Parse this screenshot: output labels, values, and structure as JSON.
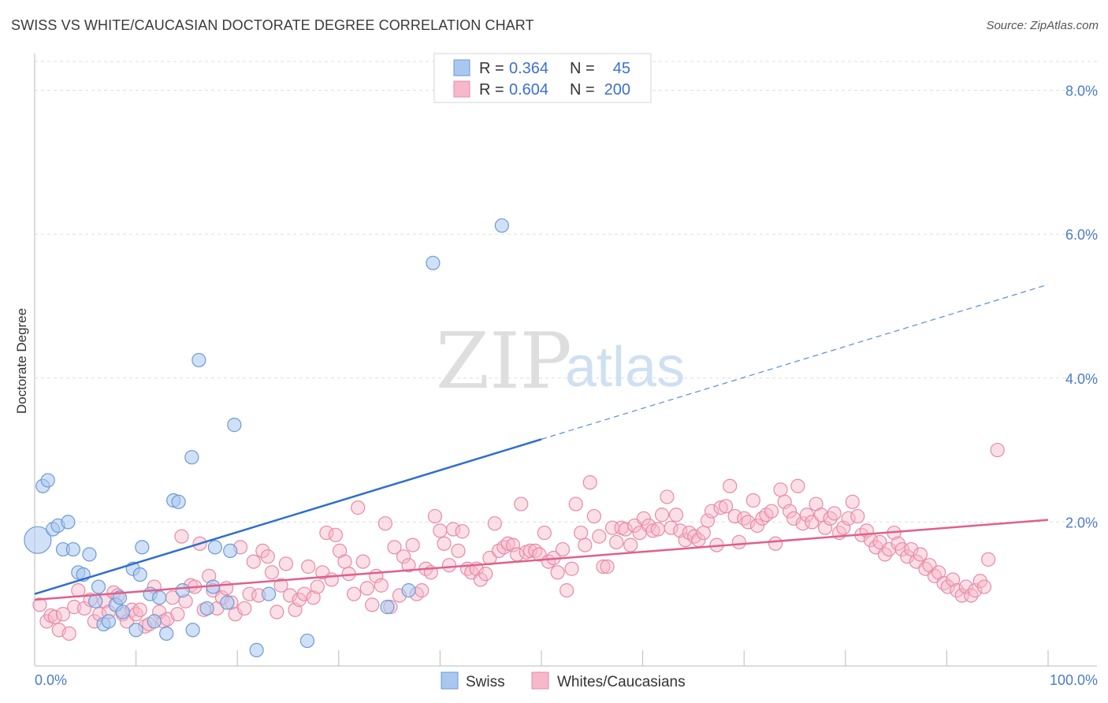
{
  "title": "SWISS VS WHITE/CAUCASIAN DOCTORATE DEGREE CORRELATION CHART",
  "source": "Source: ZipAtlas.com",
  "watermark": {
    "part1": "ZIP",
    "part2": "atlas"
  },
  "colors": {
    "swiss_fill": "#a9c8f0",
    "swiss_stroke": "#6c9ad6",
    "swiss_line": "#2f6fcc",
    "white_fill": "#f6b8ca",
    "white_stroke": "#e88aa6",
    "white_line": "#e0608a",
    "tick_label": "#4a7cc9"
  },
  "legend": {
    "rows": [
      {
        "r_label": "R =",
        "r_value": "0.364",
        "n_label": "N =",
        "n_value": "45"
      },
      {
        "r_label": "R =",
        "r_value": "0.604",
        "n_label": "N =",
        "n_value": "200"
      }
    ]
  },
  "bottom_legend": [
    "Swiss",
    "Whites/Caucasians"
  ],
  "chart_data": {
    "type": "scatter",
    "xlabel": "",
    "ylabel": "Doctorate Degree",
    "xlim": [
      0,
      100
    ],
    "ylim": [
      0,
      8.4
    ],
    "x_tick_labels": [
      "0.0%",
      "100.0%"
    ],
    "y_ticks": [
      2,
      4,
      6,
      8
    ],
    "y_tick_labels": [
      "2.0%",
      "4.0%",
      "6.0%",
      "8.0%"
    ],
    "grid": true,
    "series": [
      {
        "name": "Swiss",
        "R": 0.364,
        "N": 45,
        "trend": {
          "x0": 0,
          "y0": 1.0,
          "x1": 50,
          "y1": 3.15,
          "dashed_to": {
            "x": 100,
            "y": 5.3
          }
        },
        "points": [
          {
            "x": 0.3,
            "y": 1.75,
            "big": true
          },
          {
            "x": 0.8,
            "y": 2.5
          },
          {
            "x": 1.3,
            "y": 2.58
          },
          {
            "x": 1.8,
            "y": 1.9
          },
          {
            "x": 2.3,
            "y": 1.95
          },
          {
            "x": 2.8,
            "y": 1.62
          },
          {
            "x": 3.3,
            "y": 2.0
          },
          {
            "x": 3.8,
            "y": 1.62
          },
          {
            "x": 4.3,
            "y": 1.3
          },
          {
            "x": 4.8,
            "y": 1.27
          },
          {
            "x": 5.4,
            "y": 1.55
          },
          {
            "x": 6.0,
            "y": 0.9
          },
          {
            "x": 6.3,
            "y": 1.1
          },
          {
            "x": 6.8,
            "y": 0.58
          },
          {
            "x": 7.3,
            "y": 0.62
          },
          {
            "x": 8.0,
            "y": 0.85
          },
          {
            "x": 8.4,
            "y": 0.95
          },
          {
            "x": 8.7,
            "y": 0.75
          },
          {
            "x": 9.7,
            "y": 1.35
          },
          {
            "x": 10.0,
            "y": 0.5
          },
          {
            "x": 10.4,
            "y": 1.27
          },
          {
            "x": 10.6,
            "y": 1.65
          },
          {
            "x": 11.4,
            "y": 1.0
          },
          {
            "x": 11.8,
            "y": 0.62
          },
          {
            "x": 12.3,
            "y": 0.95
          },
          {
            "x": 13.0,
            "y": 0.45
          },
          {
            "x": 13.7,
            "y": 2.3
          },
          {
            "x": 14.2,
            "y": 2.28
          },
          {
            "x": 14.6,
            "y": 1.05
          },
          {
            "x": 15.5,
            "y": 2.9
          },
          {
            "x": 15.6,
            "y": 0.5
          },
          {
            "x": 16.2,
            "y": 4.25
          },
          {
            "x": 17.0,
            "y": 0.8
          },
          {
            "x": 17.6,
            "y": 1.1
          },
          {
            "x": 17.8,
            "y": 1.65
          },
          {
            "x": 19.3,
            "y": 1.6
          },
          {
            "x": 19.7,
            "y": 3.35
          },
          {
            "x": 21.9,
            "y": 0.22
          },
          {
            "x": 23.1,
            "y": 1.0
          },
          {
            "x": 26.9,
            "y": 0.35
          },
          {
            "x": 34.8,
            "y": 0.82
          },
          {
            "x": 36.9,
            "y": 1.05
          },
          {
            "x": 39.3,
            "y": 5.6
          },
          {
            "x": 46.1,
            "y": 6.12
          },
          {
            "x": 19.0,
            "y": 0.88
          }
        ]
      },
      {
        "name": "Whites/Caucasians",
        "R": 0.604,
        "N": 200,
        "trend": {
          "x0": 0,
          "y0": 0.92,
          "x1": 100,
          "y1": 2.03
        },
        "points": [
          {
            "x": 0.5,
            "y": 0.85
          },
          {
            "x": 1.2,
            "y": 0.62
          },
          {
            "x": 1.6,
            "y": 0.7
          },
          {
            "x": 2.0,
            "y": 0.68
          },
          {
            "x": 2.4,
            "y": 0.5
          },
          {
            "x": 2.8,
            "y": 0.72
          },
          {
            "x": 3.4,
            "y": 0.45
          },
          {
            "x": 3.9,
            "y": 0.82
          },
          {
            "x": 4.3,
            "y": 1.05
          },
          {
            "x": 4.9,
            "y": 0.8
          },
          {
            "x": 5.5,
            "y": 0.92
          },
          {
            "x": 5.9,
            "y": 0.62
          },
          {
            "x": 6.4,
            "y": 0.72
          },
          {
            "x": 6.9,
            "y": 0.9
          },
          {
            "x": 7.3,
            "y": 0.75
          },
          {
            "x": 7.8,
            "y": 1.02
          },
          {
            "x": 8.2,
            "y": 0.98
          },
          {
            "x": 8.7,
            "y": 0.72
          },
          {
            "x": 9.1,
            "y": 0.62
          },
          {
            "x": 9.6,
            "y": 0.78
          },
          {
            "x": 10.0,
            "y": 0.72
          },
          {
            "x": 10.4,
            "y": 0.78
          },
          {
            "x": 10.9,
            "y": 0.55
          },
          {
            "x": 11.3,
            "y": 0.58
          },
          {
            "x": 11.8,
            "y": 1.1
          },
          {
            "x": 12.3,
            "y": 0.75
          },
          {
            "x": 12.7,
            "y": 0.62
          },
          {
            "x": 13.1,
            "y": 0.65
          },
          {
            "x": 13.6,
            "y": 0.95
          },
          {
            "x": 14.1,
            "y": 0.72
          },
          {
            "x": 14.5,
            "y": 1.8
          },
          {
            "x": 14.9,
            "y": 0.9
          },
          {
            "x": 15.4,
            "y": 1.12
          },
          {
            "x": 15.8,
            "y": 1.1
          },
          {
            "x": 16.3,
            "y": 1.7
          },
          {
            "x": 16.7,
            "y": 0.78
          },
          {
            "x": 17.2,
            "y": 1.25
          },
          {
            "x": 17.6,
            "y": 1.05
          },
          {
            "x": 18.0,
            "y": 0.8
          },
          {
            "x": 18.5,
            "y": 0.95
          },
          {
            "x": 18.9,
            "y": 1.08
          },
          {
            "x": 19.4,
            "y": 0.88
          },
          {
            "x": 19.8,
            "y": 0.72
          },
          {
            "x": 20.3,
            "y": 1.65
          },
          {
            "x": 20.7,
            "y": 0.8
          },
          {
            "x": 21.2,
            "y": 1.0
          },
          {
            "x": 21.6,
            "y": 1.45
          },
          {
            "x": 22.1,
            "y": 0.98
          },
          {
            "x": 22.5,
            "y": 1.6
          },
          {
            "x": 23.0,
            "y": 1.52
          },
          {
            "x": 23.4,
            "y": 1.3
          },
          {
            "x": 23.9,
            "y": 0.75
          },
          {
            "x": 24.3,
            "y": 1.12
          },
          {
            "x": 24.8,
            "y": 1.42
          },
          {
            "x": 25.2,
            "y": 0.98
          },
          {
            "x": 25.7,
            "y": 0.78
          },
          {
            "x": 26.1,
            "y": 0.92
          },
          {
            "x": 26.6,
            "y": 1.0
          },
          {
            "x": 27.0,
            "y": 1.38
          },
          {
            "x": 27.5,
            "y": 0.95
          },
          {
            "x": 27.9,
            "y": 1.1
          },
          {
            "x": 28.4,
            "y": 1.3
          },
          {
            "x": 28.8,
            "y": 1.85
          },
          {
            "x": 29.3,
            "y": 1.2
          },
          {
            "x": 29.7,
            "y": 1.82
          },
          {
            "x": 30.1,
            "y": 1.6
          },
          {
            "x": 30.6,
            "y": 1.45
          },
          {
            "x": 31.0,
            "y": 1.28
          },
          {
            "x": 31.5,
            "y": 1.0
          },
          {
            "x": 31.9,
            "y": 2.2
          },
          {
            "x": 32.4,
            "y": 1.45
          },
          {
            "x": 32.8,
            "y": 1.08
          },
          {
            "x": 33.3,
            "y": 0.85
          },
          {
            "x": 33.7,
            "y": 1.25
          },
          {
            "x": 34.2,
            "y": 1.12
          },
          {
            "x": 34.6,
            "y": 1.98
          },
          {
            "x": 35.1,
            "y": 0.82
          },
          {
            "x": 35.5,
            "y": 1.65
          },
          {
            "x": 36.0,
            "y": 0.98
          },
          {
            "x": 36.4,
            "y": 1.52
          },
          {
            "x": 36.9,
            "y": 1.4
          },
          {
            "x": 37.3,
            "y": 1.68
          },
          {
            "x": 37.7,
            "y": 1.0
          },
          {
            "x": 38.2,
            "y": 1.05
          },
          {
            "x": 38.6,
            "y": 1.35
          },
          {
            "x": 39.1,
            "y": 1.3
          },
          {
            "x": 39.5,
            "y": 2.08
          },
          {
            "x": 40.0,
            "y": 1.88
          },
          {
            "x": 40.4,
            "y": 1.7
          },
          {
            "x": 40.9,
            "y": 1.4
          },
          {
            "x": 41.3,
            "y": 1.9
          },
          {
            "x": 41.8,
            "y": 1.6
          },
          {
            "x": 42.2,
            "y": 1.87
          },
          {
            "x": 42.7,
            "y": 1.35
          },
          {
            "x": 43.1,
            "y": 1.3
          },
          {
            "x": 43.6,
            "y": 1.35
          },
          {
            "x": 44.0,
            "y": 1.2
          },
          {
            "x": 44.5,
            "y": 1.28
          },
          {
            "x": 44.9,
            "y": 1.5
          },
          {
            "x": 45.4,
            "y": 1.98
          },
          {
            "x": 45.8,
            "y": 1.6
          },
          {
            "x": 46.3,
            "y": 1.65
          },
          {
            "x": 46.7,
            "y": 1.7
          },
          {
            "x": 47.2,
            "y": 1.68
          },
          {
            "x": 47.6,
            "y": 1.55
          },
          {
            "x": 48.0,
            "y": 2.25
          },
          {
            "x": 48.5,
            "y": 1.58
          },
          {
            "x": 48.9,
            "y": 1.6
          },
          {
            "x": 49.4,
            "y": 1.6
          },
          {
            "x": 49.8,
            "y": 1.55
          },
          {
            "x": 50.3,
            "y": 1.85
          },
          {
            "x": 50.7,
            "y": 1.45
          },
          {
            "x": 51.2,
            "y": 1.5
          },
          {
            "x": 51.6,
            "y": 1.3
          },
          {
            "x": 52.1,
            "y": 1.62
          },
          {
            "x": 52.5,
            "y": 1.05
          },
          {
            "x": 53.0,
            "y": 1.35
          },
          {
            "x": 53.4,
            "y": 2.25
          },
          {
            "x": 53.9,
            "y": 1.85
          },
          {
            "x": 54.3,
            "y": 1.68
          },
          {
            "x": 54.8,
            "y": 2.55
          },
          {
            "x": 55.2,
            "y": 2.08
          },
          {
            "x": 55.7,
            "y": 1.8
          },
          {
            "x": 56.1,
            "y": 1.38
          },
          {
            "x": 56.5,
            "y": 1.38
          },
          {
            "x": 57.0,
            "y": 1.92
          },
          {
            "x": 57.4,
            "y": 1.72
          },
          {
            "x": 57.9,
            "y": 1.92
          },
          {
            "x": 58.3,
            "y": 1.9
          },
          {
            "x": 58.8,
            "y": 1.68
          },
          {
            "x": 59.2,
            "y": 1.95
          },
          {
            "x": 59.7,
            "y": 1.85
          },
          {
            "x": 60.1,
            "y": 2.05
          },
          {
            "x": 60.6,
            "y": 1.95
          },
          {
            "x": 61.0,
            "y": 1.88
          },
          {
            "x": 61.5,
            "y": 1.9
          },
          {
            "x": 61.9,
            "y": 2.1
          },
          {
            "x": 62.4,
            "y": 2.35
          },
          {
            "x": 62.8,
            "y": 1.92
          },
          {
            "x": 63.3,
            "y": 2.1
          },
          {
            "x": 63.7,
            "y": 1.88
          },
          {
            "x": 64.2,
            "y": 1.75
          },
          {
            "x": 64.6,
            "y": 1.85
          },
          {
            "x": 65.1,
            "y": 1.8
          },
          {
            "x": 65.5,
            "y": 1.75
          },
          {
            "x": 66.0,
            "y": 1.85
          },
          {
            "x": 66.4,
            "y": 2.02
          },
          {
            "x": 66.8,
            "y": 2.15
          },
          {
            "x": 67.3,
            "y": 1.68
          },
          {
            "x": 67.7,
            "y": 2.2
          },
          {
            "x": 68.2,
            "y": 2.22
          },
          {
            "x": 68.6,
            "y": 2.5
          },
          {
            "x": 69.1,
            "y": 2.08
          },
          {
            "x": 69.5,
            "y": 1.72
          },
          {
            "x": 70.0,
            "y": 2.05
          },
          {
            "x": 70.4,
            "y": 2.0
          },
          {
            "x": 70.9,
            "y": 2.3
          },
          {
            "x": 71.3,
            "y": 1.95
          },
          {
            "x": 71.8,
            "y": 2.05
          },
          {
            "x": 72.2,
            "y": 2.1
          },
          {
            "x": 72.7,
            "y": 2.15
          },
          {
            "x": 73.1,
            "y": 1.7
          },
          {
            "x": 73.6,
            "y": 2.45
          },
          {
            "x": 74.0,
            "y": 2.28
          },
          {
            "x": 74.5,
            "y": 2.15
          },
          {
            "x": 74.9,
            "y": 2.05
          },
          {
            "x": 75.3,
            "y": 2.5
          },
          {
            "x": 75.8,
            "y": 1.98
          },
          {
            "x": 76.2,
            "y": 2.1
          },
          {
            "x": 76.7,
            "y": 2.0
          },
          {
            "x": 77.1,
            "y": 2.25
          },
          {
            "x": 77.6,
            "y": 2.1
          },
          {
            "x": 78.0,
            "y": 1.92
          },
          {
            "x": 78.5,
            "y": 2.05
          },
          {
            "x": 78.9,
            "y": 2.12
          },
          {
            "x": 79.4,
            "y": 1.85
          },
          {
            "x": 79.8,
            "y": 1.92
          },
          {
            "x": 80.3,
            "y": 2.05
          },
          {
            "x": 80.7,
            "y": 2.28
          },
          {
            "x": 81.2,
            "y": 2.08
          },
          {
            "x": 81.6,
            "y": 1.82
          },
          {
            "x": 82.1,
            "y": 1.88
          },
          {
            "x": 82.5,
            "y": 1.75
          },
          {
            "x": 83.0,
            "y": 1.65
          },
          {
            "x": 83.4,
            "y": 1.72
          },
          {
            "x": 83.9,
            "y": 1.55
          },
          {
            "x": 84.3,
            "y": 1.62
          },
          {
            "x": 84.8,
            "y": 1.85
          },
          {
            "x": 85.2,
            "y": 1.7
          },
          {
            "x": 85.6,
            "y": 1.62
          },
          {
            "x": 86.1,
            "y": 1.52
          },
          {
            "x": 86.5,
            "y": 1.62
          },
          {
            "x": 87.0,
            "y": 1.45
          },
          {
            "x": 87.4,
            "y": 1.55
          },
          {
            "x": 87.9,
            "y": 1.35
          },
          {
            "x": 88.3,
            "y": 1.4
          },
          {
            "x": 88.8,
            "y": 1.25
          },
          {
            "x": 89.2,
            "y": 1.3
          },
          {
            "x": 89.7,
            "y": 1.15
          },
          {
            "x": 90.1,
            "y": 1.1
          },
          {
            "x": 90.6,
            "y": 1.2
          },
          {
            "x": 91.0,
            "y": 1.05
          },
          {
            "x": 91.5,
            "y": 0.98
          },
          {
            "x": 91.9,
            "y": 1.1
          },
          {
            "x": 92.4,
            "y": 0.98
          },
          {
            "x": 92.8,
            "y": 1.05
          },
          {
            "x": 93.3,
            "y": 1.18
          },
          {
            "x": 93.7,
            "y": 1.1
          },
          {
            "x": 94.1,
            "y": 1.48
          },
          {
            "x": 95.0,
            "y": 3.0
          }
        ]
      }
    ]
  }
}
